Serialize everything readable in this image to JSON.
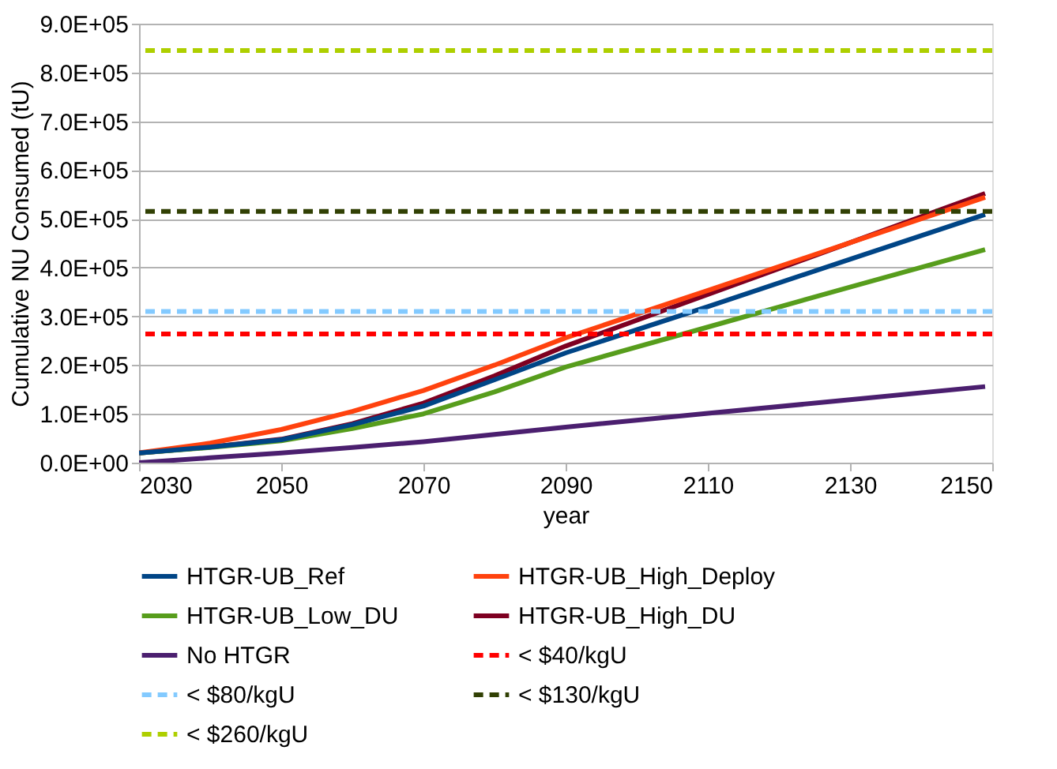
{
  "chart_data": {
    "type": "line",
    "xlabel": "year",
    "ylabel": "Cumulative NU Consumed (tU)",
    "xlim": [
      2030,
      2150
    ],
    "xticks": [
      2030,
      2050,
      2070,
      2090,
      2110,
      2130,
      2150
    ],
    "ylim": [
      0,
      900000
    ],
    "yticks": [
      {
        "value": 0,
        "label": "0.0E+00"
      },
      {
        "value": 100000,
        "label": "1.0E+05"
      },
      {
        "value": 200000,
        "label": "2.0E+05"
      },
      {
        "value": 300000,
        "label": "3.0E+05"
      },
      {
        "value": 400000,
        "label": "4.0E+05"
      },
      {
        "value": 500000,
        "label": "5.0E+05"
      },
      {
        "value": 600000,
        "label": "6.0E+05"
      },
      {
        "value": 700000,
        "label": "7.0E+05"
      },
      {
        "value": 800000,
        "label": "8.0E+05"
      },
      {
        "value": 900000,
        "label": "9.0E+05"
      }
    ],
    "grid": "y",
    "legend": "bottom",
    "line_style": "solid",
    "x": [
      2030,
      2040,
      2050,
      2060,
      2070,
      2080,
      2090,
      2110,
      2130,
      2149
    ],
    "series": [
      {
        "name": "HTGR-UB_Ref",
        "color": "#004586",
        "values": [
          20000,
          32000,
          47000,
          78000,
          116000,
          170000,
          225000,
          320000,
          417000,
          509000
        ]
      },
      {
        "name": "HTGR-UB_High_Deploy",
        "color": "#ff420e",
        "values": [
          20000,
          40000,
          68000,
          105000,
          148000,
          200000,
          256000,
          353000,
          451000,
          544000
        ]
      },
      {
        "name": "HTGR-UB_Low_DU",
        "color": "#579d1c",
        "values": [
          20000,
          31000,
          45000,
          70000,
          100000,
          145000,
          196000,
          278000,
          360000,
          437000
        ]
      },
      {
        "name": "HTGR-UB_High_DU",
        "color": "#7e0021",
        "values": [
          20000,
          32000,
          48000,
          80000,
          122000,
          178000,
          239000,
          345000,
          451000,
          552000
        ]
      },
      {
        "name": "No HTGR",
        "color": "#4b1f6f",
        "values": [
          0,
          10000,
          20000,
          31000,
          43000,
          58000,
          73000,
          101000,
          129000,
          156000
        ]
      }
    ],
    "ref_lines": [
      {
        "axis": "y",
        "value": 264000,
        "label": "< $40/kgU",
        "color": "#ff0000",
        "line_style": "dashed"
      },
      {
        "axis": "y",
        "value": 310000,
        "label": "< $80/kgU",
        "color": "#83caff",
        "line_style": "dashed"
      },
      {
        "axis": "y",
        "value": 515000,
        "label": "< $130/kgU",
        "color": "#314004",
        "line_style": "dashed"
      },
      {
        "axis": "y",
        "value": 845000,
        "label": "< $260/kgU",
        "color": "#aecf00",
        "line_style": "dashed"
      }
    ]
  }
}
